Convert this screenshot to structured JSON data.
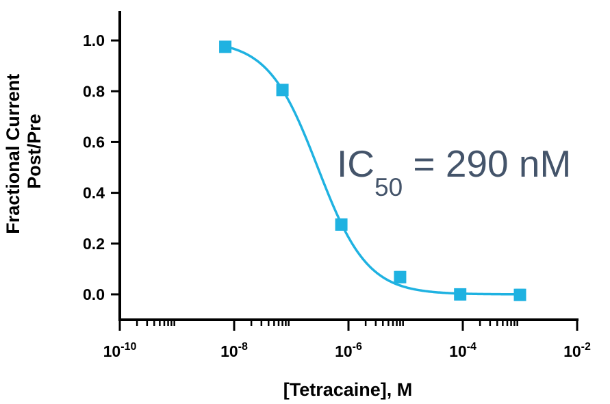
{
  "chart_data": {
    "type": "scatter",
    "xlabel": "[Tetracaine], M",
    "ylabel": [
      "Fractional Current",
      "Post/Pre"
    ],
    "x_scale": "log",
    "xlim": [
      1e-10,
      0.01
    ],
    "ylim": [
      -0.1,
      1.1
    ],
    "x_ticks": [
      {
        "value": 1e-10,
        "base": "10",
        "exp": "-10"
      },
      {
        "value": 1e-08,
        "base": "10",
        "exp": "-8"
      },
      {
        "value": 1e-06,
        "base": "10",
        "exp": "-6"
      },
      {
        "value": 0.0001,
        "base": "10",
        "exp": "-4"
      },
      {
        "value": 0.01,
        "base": "10",
        "exp": "-2"
      }
    ],
    "y_ticks": [
      "0.0",
      "0.2",
      "0.4",
      "0.6",
      "0.8",
      "1.0"
    ],
    "grid": false,
    "color": "#1fb2e1",
    "series": [
      {
        "points": [
          {
            "x": 7e-09,
            "y": 0.975,
            "err": 0.01
          },
          {
            "x": 7e-08,
            "y": 0.805,
            "err": 0.01
          },
          {
            "x": 7.5e-07,
            "y": 0.275,
            "err": 0.02
          },
          {
            "x": 8e-06,
            "y": 0.068,
            "err": 0.02
          },
          {
            "x": 9e-05,
            "y": 0.0,
            "err": 0.02
          },
          {
            "x": 0.001,
            "y": -0.002,
            "err": 0.02
          }
        ]
      }
    ],
    "fit": {
      "top": 1.0,
      "bottom": 0.0,
      "ic50": 2.9e-07,
      "hill": 1.0
    },
    "annotation": {
      "prefix": "IC",
      "subscript": "50",
      "suffix": " = 290 nM"
    }
  }
}
